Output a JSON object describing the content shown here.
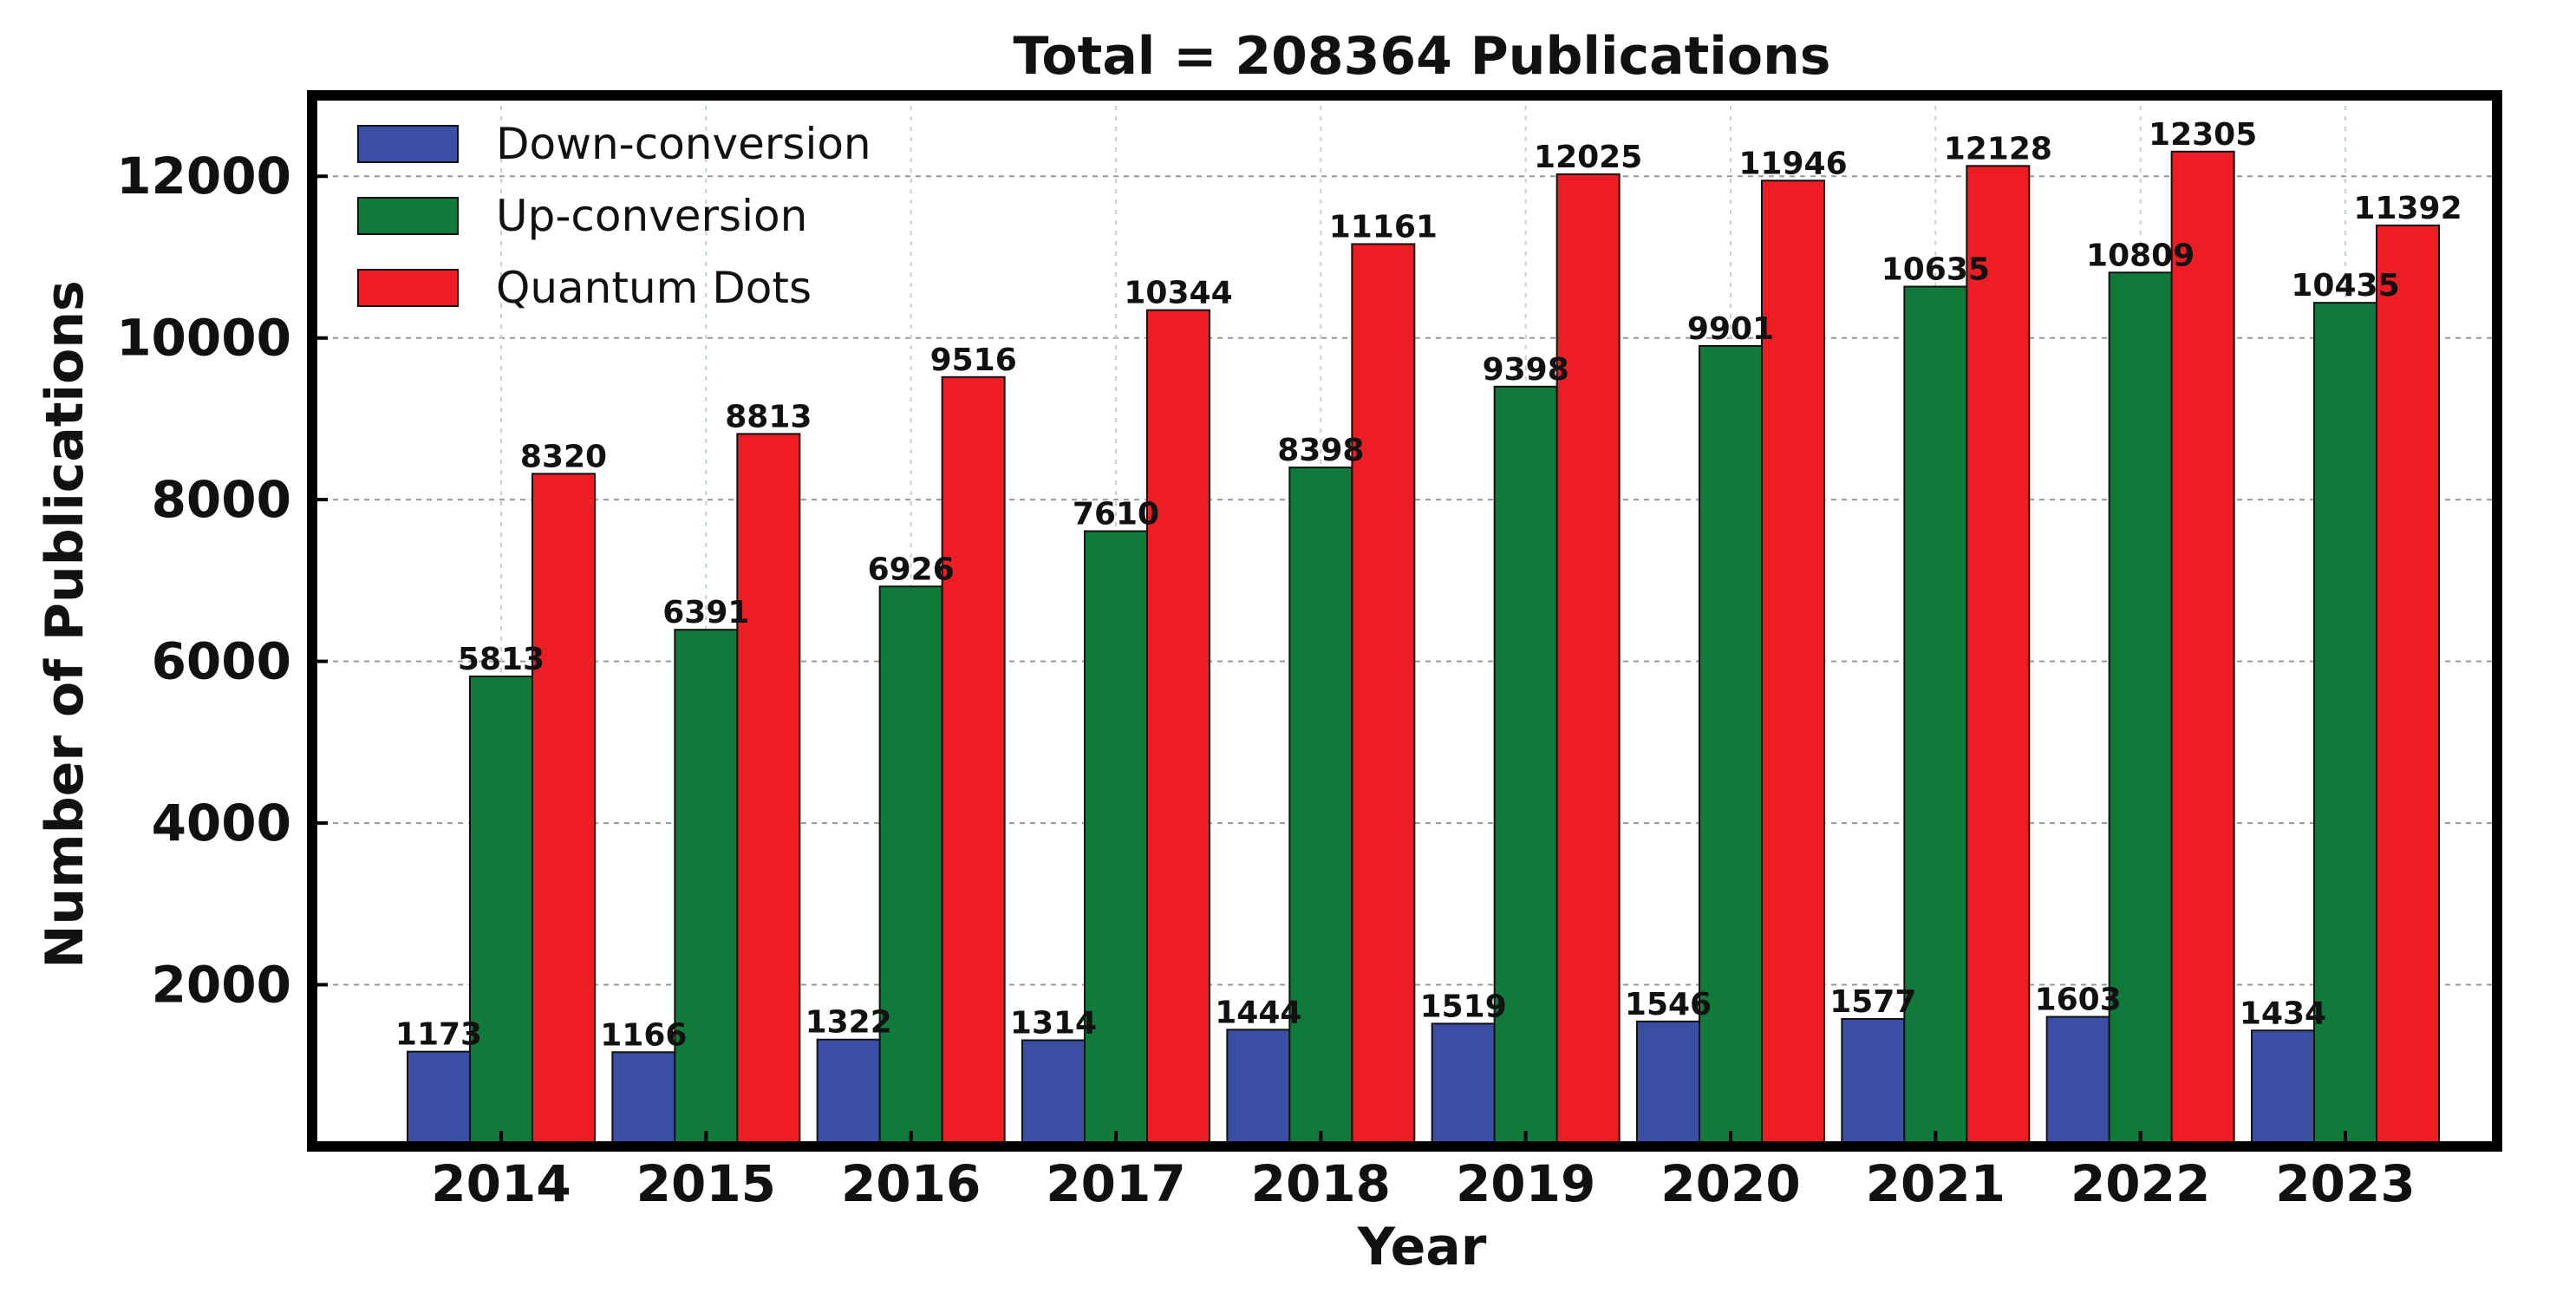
{
  "chart_data": {
    "type": "bar",
    "title": "Total = 208364 Publications",
    "xlabel": "Year",
    "ylabel": "Number of Publications",
    "categories": [
      "2014",
      "2015",
      "2016",
      "2017",
      "2018",
      "2019",
      "2020",
      "2021",
      "2022",
      "2023"
    ],
    "series": [
      {
        "name": "Down-conversion",
        "color": "#3a4fa3",
        "values": [
          1173,
          1166,
          1322,
          1314,
          1444,
          1519,
          1546,
          1577,
          1603,
          1434
        ]
      },
      {
        "name": "Up-conversion",
        "color": "#107a3a",
        "values": [
          5813,
          6391,
          6926,
          7610,
          8398,
          9398,
          9901,
          10635,
          10809,
          10435
        ]
      },
      {
        "name": "Quantum Dots",
        "color": "#ee1c23",
        "values": [
          8320,
          8813,
          9516,
          10344,
          11161,
          12025,
          11946,
          12128,
          12305,
          11392
        ]
      }
    ],
    "ylim": [
      0,
      13000
    ],
    "yticks": [
      2000,
      4000,
      6000,
      8000,
      10000,
      12000
    ],
    "legend_position": "top-left",
    "grid": true
  }
}
